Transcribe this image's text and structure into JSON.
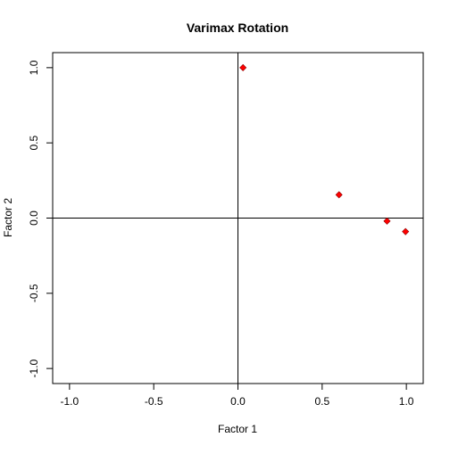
{
  "chart_data": {
    "type": "scatter",
    "title": "Varimax Rotation",
    "xlabel": "Factor 1",
    "ylabel": "Factor 2",
    "xlim": [
      -1.1,
      1.1
    ],
    "ylim": [
      -1.1,
      1.1
    ],
    "x_ticks": [
      -1.0,
      -0.5,
      0.0,
      0.5,
      1.0
    ],
    "x_tick_labels": [
      "-1.0",
      "-0.5",
      "0.0",
      "0.5",
      "1.0"
    ],
    "y_ticks": [
      -1.0,
      -0.5,
      0.0,
      0.5,
      1.0
    ],
    "y_tick_labels": [
      "-1.0",
      "-0.5",
      "0.0",
      "0.5",
      "1.0"
    ],
    "grid": false,
    "reference_lines": {
      "x": 0,
      "y": 0
    },
    "point_color": "#FF0000",
    "point_outline_color": "#8B0000",
    "series": [
      {
        "points": [
          {
            "x": 0.03,
            "y": 1.0
          },
          {
            "x": 0.6,
            "y": 0.155
          },
          {
            "x": 0.885,
            "y": -0.02
          },
          {
            "x": 0.995,
            "y": -0.09
          }
        ]
      }
    ]
  }
}
